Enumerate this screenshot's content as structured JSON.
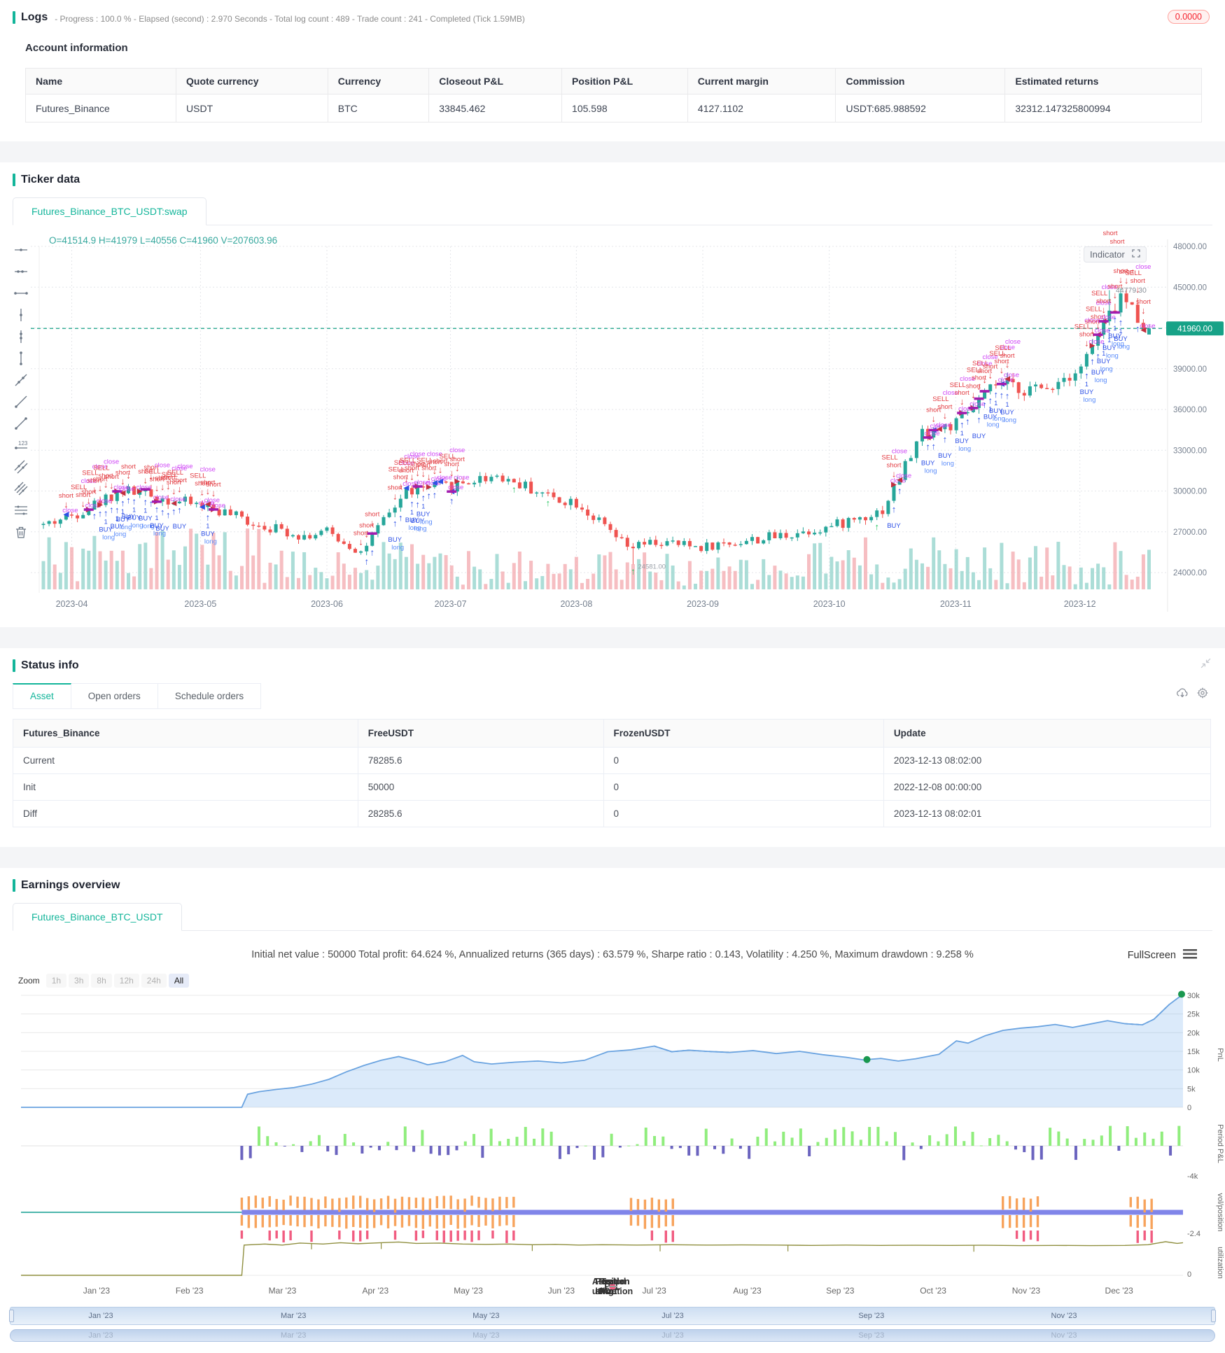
{
  "accent_color": "#13b59a",
  "logs": {
    "title": "Logs",
    "subtitle": "- Progress : 100.0 % - Elapsed (second) : 2.970 Seconds - Total log count : 489 - Trade count : 241 - Completed (Tick 1.59MB)",
    "badge": "0.0000"
  },
  "account": {
    "title": "Account information",
    "headers": [
      "Name",
      "Quote currency",
      "Currency",
      "Closeout P&L",
      "Position P&L",
      "Current margin",
      "Commission",
      "Estimated returns"
    ],
    "col_pct": [
      12.8,
      12.9,
      8.6,
      11.3,
      10.7,
      12.6,
      14.4,
      16.7
    ],
    "rows": [
      [
        "Futures_Binance",
        "USDT",
        "BTC",
        "33845.462",
        "105.598",
        "4127.1102",
        "USDT:685.988592",
        "32312.147325800994"
      ]
    ]
  },
  "ticker": {
    "section_title": "Ticker data",
    "tab": "Futures_Binance_BTC_USDT:swap",
    "ohlc": "O=41514.9 H=41979 L=40556 C=41960 V=207603.96",
    "indicator_button": "Indicator",
    "price_tag": "41960.00",
    "price_tag_value": 41960,
    "crosshair_price": "44779.30",
    "low_annotation": "24581.00",
    "top_annotations": [
      "short",
      "short"
    ],
    "y_ticks": [
      "48000.00",
      "45000.00",
      "42000.00",
      "39000.00",
      "36000.00",
      "33000.00",
      "30000.00",
      "27000.00",
      "24000.00"
    ],
    "y_range": [
      48000,
      24000
    ],
    "x_ticks": [
      [
        "2023-04",
        5
      ],
      [
        "2023-05",
        27.7
      ],
      [
        "2023-06",
        50
      ],
      [
        "2023-07",
        71.8
      ],
      [
        "2023-08",
        94
      ],
      [
        "2023-09",
        116.3
      ],
      [
        "2023-10",
        138.6
      ],
      [
        "2023-11",
        160.9
      ],
      [
        "2023-12",
        182.8
      ]
    ],
    "marker_labels": {
      "short": "short",
      "sell": "SELL",
      "sell1": "SELL1",
      "close": "close",
      "buy": "BUY",
      "buy1": "BUY1",
      "long": "long",
      "one": "1"
    },
    "toolbar_icons": [
      "horizontal-straight-line",
      "horizontal-ray",
      "horizontal-segment",
      "vertical-straight-line",
      "vertical-ray",
      "vertical-segment",
      "straight-line",
      "ray-line",
      "segment",
      "price-line",
      "parallel-line",
      "price-channel",
      "horizontal-channel",
      "remove"
    ],
    "anchors": [
      [
        0,
        27500
      ],
      [
        5,
        28200
      ],
      [
        14,
        30100
      ],
      [
        24,
        29200
      ],
      [
        28,
        29000
      ],
      [
        36,
        27800
      ],
      [
        46,
        26700
      ],
      [
        50,
        27000
      ],
      [
        56,
        25500
      ],
      [
        64,
        30000
      ],
      [
        72,
        30400
      ],
      [
        80,
        31200
      ],
      [
        90,
        29500
      ],
      [
        94,
        29200
      ],
      [
        103,
        25800
      ],
      [
        108,
        26200
      ],
      [
        116,
        25900
      ],
      [
        127,
        26500
      ],
      [
        139,
        27400
      ],
      [
        148,
        28600
      ],
      [
        155,
        34300
      ],
      [
        161,
        34900
      ],
      [
        168,
        37800
      ],
      [
        176,
        37400
      ],
      [
        183,
        39200
      ],
      [
        190,
        44300
      ],
      [
        195,
        41960
      ]
    ],
    "last_open": 41514.9,
    "marker_clusters": [
      [
        1,
        30,
        0.8
      ],
      [
        56,
        75,
        0.7
      ],
      [
        150,
        170,
        0.75
      ],
      [
        184,
        195,
        0.8
      ]
    ],
    "green_arrow_indices": [
      83,
      89,
      104,
      147
    ],
    "colors": {
      "up": "#26a69a",
      "down": "#ef5350",
      "vol_up": "#8fd1c9",
      "vol_down": "#f3a8ae",
      "buy": "#2d50e6",
      "long": "#5b8cfa",
      "sell": "#e23b41",
      "close": "#cf46f5",
      "bar": "#a21caf",
      "green_arrow": "#22c55e",
      "tag_bg": "#17a287"
    }
  },
  "status": {
    "section_title": "Status info",
    "tabs": [
      "Asset",
      "Open orders",
      "Schedule orders"
    ],
    "active_tab": "Asset",
    "headers": [
      "Futures_Binance",
      "FreeUSDT",
      "FrozenUSDT",
      "Update"
    ],
    "col_pct": [
      28.8,
      20.5,
      23.4,
      27.3
    ],
    "rows": [
      {
        "label": "Current",
        "free": "78285.6",
        "frozen": "0",
        "update": "2023-12-13 08:02:00",
        "label_class": "c-blue",
        "free_class": ""
      },
      {
        "label": "Init",
        "free": "50000",
        "frozen": "0",
        "update": "2022-12-08 00:00:00",
        "label_class": "",
        "free_class": ""
      },
      {
        "label": "Diff",
        "free": "28285.6",
        "frozen": "0",
        "update": "2023-12-13 08:02:01",
        "label_class": "c-red",
        "free_class": "c-red"
      }
    ]
  },
  "earnings": {
    "section_title": "Earnings overview",
    "tab": "Futures_Binance_BTC_USDT",
    "stats": "Initial net value : 50000 Total profit: 64.624 %, Annualized returns (365 days) : 63.579 %, Sharpe ratio : 0.143, Volatility : 4.250 %, Maximum drawdown : 9.258 %",
    "fullscreen_label": "FullScreen",
    "zoom_label": "Zoom",
    "zoom_options": [
      "1h",
      "3h",
      "8h",
      "12h",
      "24h",
      "All"
    ],
    "zoom_active": "All",
    "panel_titles": [
      "PnL",
      "Period P&L",
      "vol/position",
      "utilization"
    ],
    "pnl_ticks": [
      "30k",
      "25k",
      "20k",
      "15k",
      "10k",
      "5k",
      "0"
    ],
    "period_min_tick": "-4k",
    "vol_min_tick": "-2.4",
    "util_min_tick": "0",
    "x_ticks": [
      "Jan '23",
      "Feb '23",
      "Mar '23",
      "Apr '23",
      "May '23",
      "Jun '23",
      "Jul '23",
      "Aug '23",
      "Sep '23",
      "Oct '23",
      "Nov '23",
      "Dec '23"
    ],
    "nav_ticks": [
      "Jan '23",
      "Mar '23",
      "May '23",
      "Jul '23",
      "Sep '23",
      "Nov '23"
    ],
    "nav_fracs": [
      0.075,
      0.235,
      0.395,
      0.55,
      0.715,
      0.875
    ],
    "legend": [
      {
        "label": "PnL",
        "color": "#7cb5ec",
        "shape": "dot"
      },
      {
        "label": "Period P&L",
        "color": "#90ed7d",
        "shape": "dot"
      },
      {
        "label": "Trade Vol",
        "color": "#f7a35c",
        "shape": "dot"
      },
      {
        "label": "Position long",
        "color": "#8085e9",
        "shape": "dot"
      },
      {
        "label": "Position short",
        "color": "#f15c80",
        "shape": "dot"
      },
      {
        "label": "Asset utilization",
        "color": "#9a9a9a",
        "shape": "line"
      }
    ],
    "pnl_points": [
      [
        0,
        0
      ],
      [
        0.19,
        0
      ],
      [
        0.195,
        3.5
      ],
      [
        0.205,
        4.2
      ],
      [
        0.22,
        4.8
      ],
      [
        0.235,
        5.3
      ],
      [
        0.25,
        6.2
      ],
      [
        0.265,
        7.5
      ],
      [
        0.28,
        9.5
      ],
      [
        0.295,
        11.2
      ],
      [
        0.31,
        12.6
      ],
      [
        0.325,
        13.6
      ],
      [
        0.34,
        12.4
      ],
      [
        0.35,
        11.4
      ],
      [
        0.365,
        12.2
      ],
      [
        0.38,
        13.9
      ],
      [
        0.39,
        12.2
      ],
      [
        0.405,
        11.6
      ],
      [
        0.425,
        12.1
      ],
      [
        0.445,
        12.4
      ],
      [
        0.465,
        11.9
      ],
      [
        0.485,
        12.6
      ],
      [
        0.505,
        14.9
      ],
      [
        0.525,
        15.4
      ],
      [
        0.545,
        16.4
      ],
      [
        0.56,
        14.9
      ],
      [
        0.575,
        15.3
      ],
      [
        0.59,
        15.0
      ],
      [
        0.61,
        14.7
      ],
      [
        0.63,
        15.2
      ],
      [
        0.65,
        14.4
      ],
      [
        0.67,
        15.0
      ],
      [
        0.69,
        14.1
      ],
      [
        0.71,
        13.4
      ],
      [
        0.725,
        12.7
      ],
      [
        0.74,
        13.1
      ],
      [
        0.755,
        12.4
      ],
      [
        0.77,
        13.0
      ],
      [
        0.79,
        14.2
      ],
      [
        0.805,
        17.8
      ],
      [
        0.815,
        17.2
      ],
      [
        0.83,
        19.2
      ],
      [
        0.845,
        20.6
      ],
      [
        0.86,
        21.2
      ],
      [
        0.875,
        21.6
      ],
      [
        0.89,
        22.2
      ],
      [
        0.905,
        21.4
      ],
      [
        0.92,
        22.3
      ],
      [
        0.935,
        23.2
      ],
      [
        0.95,
        22.4
      ],
      [
        0.965,
        22.1
      ],
      [
        0.975,
        23.6
      ],
      [
        0.988,
        27.5
      ],
      [
        1,
        30.3
      ]
    ],
    "pnl_dashed_spans": [
      [
        0.545,
        0.615
      ],
      [
        0.95,
        0.99
      ]
    ],
    "green_dots": [
      [
        0.728,
        12.8
      ],
      [
        1,
        30.3
      ]
    ],
    "vol_clusters": [
      [
        0.19,
        0.425
      ],
      [
        0.525,
        0.565
      ],
      [
        0.845,
        0.88
      ],
      [
        0.955,
        0.975
      ]
    ],
    "util_points": [
      [
        0,
        0
      ],
      [
        0.19,
        0
      ],
      [
        0.192,
        0.9
      ],
      [
        0.21,
        0.93
      ],
      [
        0.225,
        0.9
      ],
      [
        0.24,
        0.96
      ],
      [
        0.26,
        0.93
      ],
      [
        0.275,
        0.97
      ],
      [
        0.29,
        0.94
      ],
      [
        0.31,
        0.97
      ],
      [
        0.325,
        0.99
      ],
      [
        0.34,
        0.95
      ],
      [
        0.36,
        0.96
      ],
      [
        0.38,
        0.93
      ],
      [
        0.4,
        0.92
      ],
      [
        0.42,
        0.93
      ],
      [
        0.44,
        0.91
      ],
      [
        0.46,
        0.92
      ],
      [
        0.48,
        0.9
      ],
      [
        0.5,
        0.91
      ],
      [
        0.53,
        0.9
      ],
      [
        0.56,
        0.91
      ],
      [
        0.59,
        0.9
      ],
      [
        0.62,
        0.905
      ],
      [
        0.65,
        0.9
      ],
      [
        0.68,
        0.89
      ],
      [
        0.71,
        0.9
      ],
      [
        0.74,
        0.89
      ],
      [
        0.77,
        0.895
      ],
      [
        0.8,
        0.89
      ],
      [
        0.83,
        0.895
      ],
      [
        0.86,
        0.885
      ],
      [
        0.89,
        0.89
      ],
      [
        0.92,
        0.885
      ],
      [
        0.95,
        0.89
      ],
      [
        0.97,
        0.91
      ],
      [
        0.985,
        1.0
      ],
      [
        0.995,
        0.95
      ],
      [
        1,
        0.97
      ]
    ],
    "colors": {
      "pnl": "#6aa3e0",
      "pnl_fill": "rgba(124,181,236,0.28)",
      "period_pos": "#90ed7d",
      "period_neg": "#6b64bf",
      "vol_bar": "#f7a35c",
      "pos_long": "#8085e9",
      "pos_short": "#f15c80",
      "util": "#8f8f3f",
      "green_dot": "#1a9850"
    }
  }
}
